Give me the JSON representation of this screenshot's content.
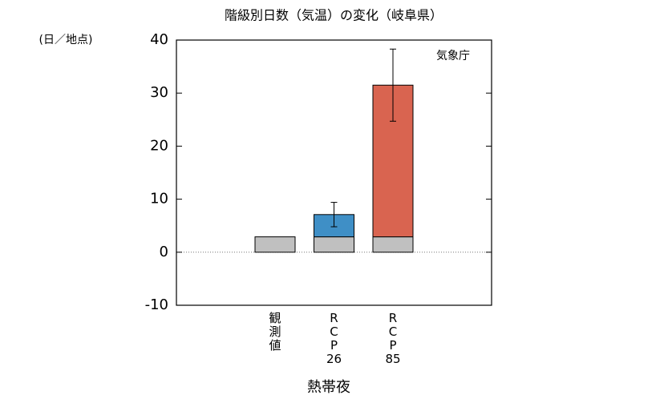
{
  "chart_data": {
    "type": "bar",
    "stacked": true,
    "title": "階級別日数（気温）の変化（岐阜県）",
    "y_label": "(日／地点)",
    "annotation": "気象庁",
    "x_label": "熱帯夜",
    "categories": [
      "観測値",
      "RCP26",
      "RCP85"
    ],
    "series": [
      {
        "color": "#c0c0c0",
        "values": [
          2.9,
          2.9,
          2.9
        ]
      },
      {
        "color": "#3f8fc6",
        "values": [
          null,
          4.2,
          null
        ],
        "errors": [
          null,
          2.3,
          null
        ]
      },
      {
        "color": "#d96450",
        "values": [
          null,
          null,
          28.6
        ],
        "errors": [
          null,
          null,
          6.8
        ]
      }
    ],
    "ylim": [
      -10,
      40
    ],
    "yticks": [
      -10,
      0,
      10,
      20,
      30,
      40
    ],
    "zero_line": true,
    "grid": false
  }
}
